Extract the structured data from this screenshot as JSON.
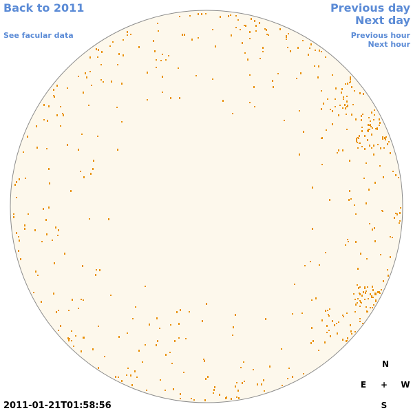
{
  "navigation": {
    "back": "Back to 2011",
    "facular": "See facular data",
    "previous_day": "Previous day",
    "next_day": "Next day",
    "previous_hour": "Previous hour",
    "next_hour": "Next hour"
  },
  "compass": {
    "north": "N",
    "east": "E",
    "center": "+",
    "west": "W",
    "south": "S"
  },
  "timestamp": "2011-01-21T01:58:56"
}
